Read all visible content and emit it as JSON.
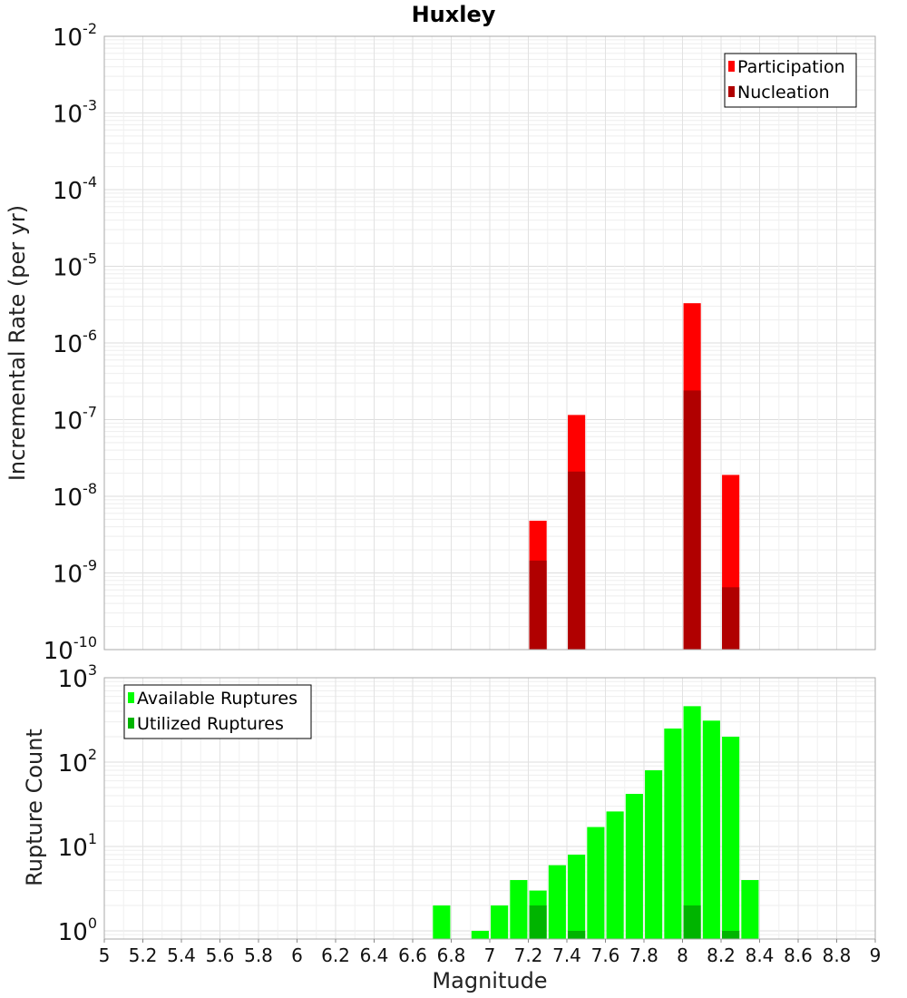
{
  "chart_data": {
    "title": "Huxley",
    "xlabel": "Magnitude",
    "xlim": [
      5,
      9
    ],
    "x_ticks": [
      "5",
      "5.2",
      "5.4",
      "5.6",
      "5.8",
      "6",
      "6.2",
      "6.4",
      "6.6",
      "6.8",
      "7",
      "7.2",
      "7.4",
      "7.6",
      "7.8",
      "8",
      "8.2",
      "8.4",
      "8.6",
      "8.8",
      "9"
    ],
    "grid": true,
    "panels": [
      {
        "type": "bar",
        "scale": "log",
        "ylabel": "Incremental Rate (per yr)",
        "ylim": [
          1e-10,
          0.01
        ],
        "y_ticks": [
          {
            "base": "10",
            "exp": "-10"
          },
          {
            "base": "10",
            "exp": "-9"
          },
          {
            "base": "10",
            "exp": "-8"
          },
          {
            "base": "10",
            "exp": "-7"
          },
          {
            "base": "10",
            "exp": "-6"
          },
          {
            "base": "10",
            "exp": "-5"
          },
          {
            "base": "10",
            "exp": "-4"
          },
          {
            "base": "10",
            "exp": "-3"
          },
          {
            "base": "10",
            "exp": "-2"
          }
        ],
        "legend_position": "top-right",
        "series": [
          {
            "name": "Participation",
            "color": "#ff0000",
            "x": [
              7.25,
              7.45,
              8.05,
              8.25
            ],
            "values": [
              4.8e-09,
              1.15e-07,
              3.3e-06,
              1.9e-08
            ]
          },
          {
            "name": "Nucleation",
            "color": "#b00000",
            "x": [
              7.25,
              7.45,
              8.05,
              8.25
            ],
            "values": [
              1.45e-09,
              2.1e-08,
              2.4e-07,
              6.5e-10
            ]
          }
        ]
      },
      {
        "type": "bar",
        "scale": "log",
        "ylabel": "Rupture Count",
        "ylim": [
          0.8,
          1000
        ],
        "y_ticks": [
          {
            "base": "10",
            "exp": "0"
          },
          {
            "base": "10",
            "exp": "1"
          },
          {
            "base": "10",
            "exp": "2"
          },
          {
            "base": "10",
            "exp": "3"
          }
        ],
        "legend_position": "top-left",
        "series": [
          {
            "name": "Available Ruptures",
            "color": "#00ff00",
            "x": [
              6.75,
              6.95,
              7.05,
              7.15,
              7.25,
              7.35,
              7.45,
              7.55,
              7.65,
              7.75,
              7.85,
              7.95,
              8.05,
              8.15,
              8.25,
              8.35
            ],
            "values": [
              2,
              1,
              2,
              4,
              3,
              6,
              8,
              17,
              26,
              42,
              80,
              250,
              460,
              310,
              200,
              4
            ]
          },
          {
            "name": "Utilized Ruptures",
            "color": "#00b400",
            "x": [
              7.25,
              7.45,
              8.05,
              8.25
            ],
            "values": [
              2,
              1,
              2,
              1
            ]
          }
        ]
      }
    ]
  }
}
